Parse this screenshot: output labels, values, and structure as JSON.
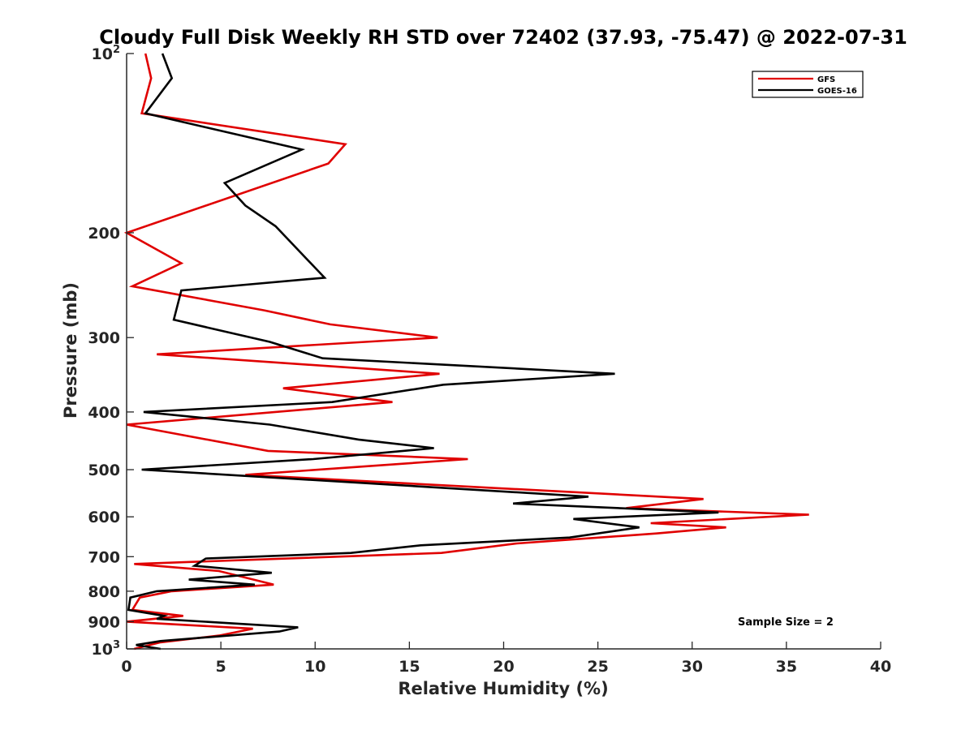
{
  "chart_data": {
    "type": "line",
    "title": "Cloudy Full Disk Weekly RH STD over 72402 (37.93, -75.47) @ 2022-07-31",
    "xlabel": "Relative Humidity (%)",
    "ylabel": "Pressure (mb)",
    "xlim": [
      0,
      40
    ],
    "ylim": [
      100,
      1000
    ],
    "yscale": "log",
    "y_reversed": true,
    "x_ticks": [
      0,
      5,
      10,
      15,
      20,
      25,
      30,
      35,
      40
    ],
    "x_tick_labels": [
      "0",
      "5",
      "10",
      "15",
      "20",
      "25",
      "30",
      "35",
      "40"
    ],
    "y_ticks": [
      100,
      200,
      300,
      400,
      500,
      600,
      700,
      800,
      900,
      1000
    ],
    "y_tick_labels": [
      {
        "base": "10",
        "sup": "2"
      },
      {
        "base": "200"
      },
      {
        "base": "300"
      },
      {
        "base": "400"
      },
      {
        "base": "500"
      },
      {
        "base": "600"
      },
      {
        "base": "700"
      },
      {
        "base": "800"
      },
      {
        "base": "900"
      },
      {
        "base": "10",
        "sup": "3"
      }
    ],
    "grid": false,
    "legend_location": "top-right",
    "series": [
      {
        "name": "GFS",
        "color": "#e00000",
        "x": [
          1.0,
          1.3,
          0.8,
          11.6,
          10.7,
          0.0,
          2.9,
          0.3,
          7.3,
          10.8,
          16.5,
          1.6,
          16.6,
          8.3,
          14.1,
          0.0,
          7.5,
          18.1,
          6.3,
          30.6,
          26.5,
          36.2,
          27.8,
          31.8,
          28.1,
          20.7,
          16.7,
          0.4,
          4.9,
          7.8,
          2.4,
          0.7,
          0.3,
          3.0,
          0.0,
          6.7,
          4.9,
          1.8,
          0.4
        ],
        "y": [
          100,
          110,
          126,
          142,
          153,
          200,
          225,
          246,
          270,
          285,
          300,
          320,
          345,
          365,
          385,
          420,
          465,
          480,
          510,
          560,
          580,
          595,
          615,
          625,
          640,
          665,
          690,
          720,
          740,
          780,
          800,
          820,
          860,
          880,
          900,
          925,
          950,
          975,
          1000
        ]
      },
      {
        "name": "GOES-16",
        "color": "#000000",
        "x": [
          1.9,
          2.4,
          1.0,
          9.3,
          5.2,
          6.3,
          7.9,
          10.5,
          2.9,
          2.5,
          7.6,
          10.4,
          25.9,
          16.8,
          10.9,
          0.9,
          7.6,
          12.3,
          16.3,
          9.9,
          0.8,
          24.5,
          20.5,
          31.4,
          23.7,
          27.2,
          23.5,
          15.6,
          11.9,
          4.2,
          3.6,
          7.7,
          3.3,
          6.8,
          1.6,
          0.2,
          0.1,
          2.0,
          1.6,
          9.1,
          8.1,
          1.8,
          0.5,
          1.8
        ],
        "y": [
          100,
          110,
          126,
          145,
          165,
          180,
          195,
          238,
          250,
          280,
          305,
          325,
          345,
          360,
          385,
          400,
          420,
          445,
          460,
          480,
          500,
          555,
          570,
          590,
          605,
          625,
          650,
          670,
          690,
          705,
          725,
          745,
          765,
          780,
          800,
          820,
          860,
          880,
          890,
          920,
          935,
          970,
          985,
          1000
        ]
      }
    ],
    "annotation": "Sample Size = 2"
  }
}
